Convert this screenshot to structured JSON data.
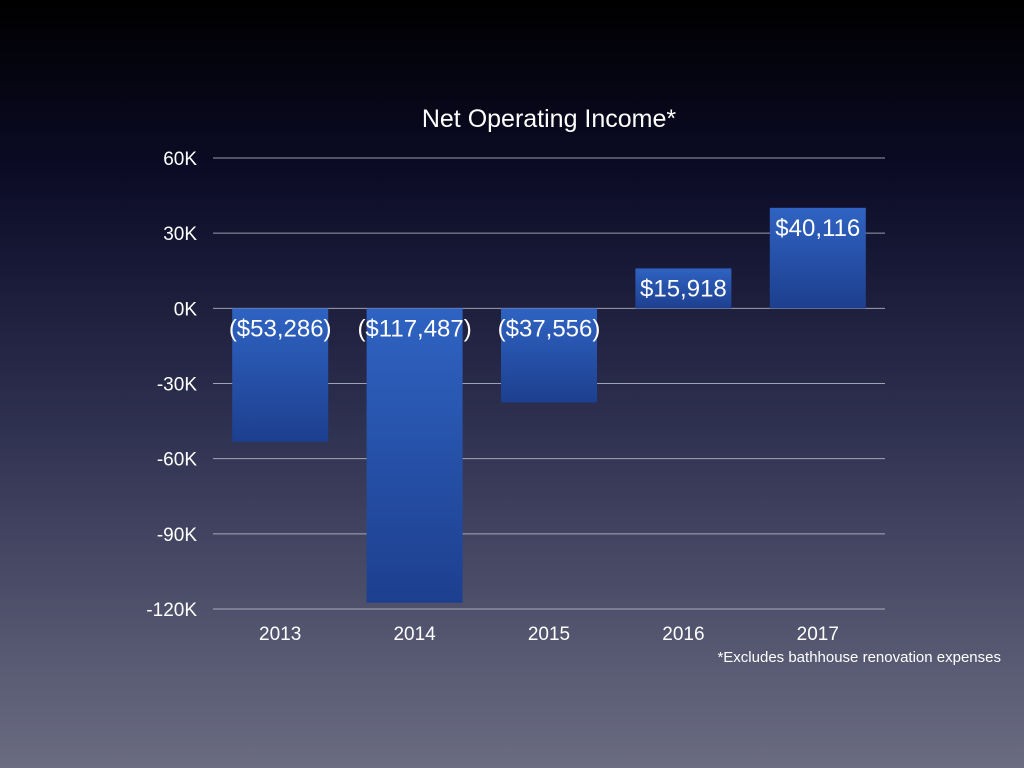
{
  "chart_data": {
    "type": "bar",
    "title": "Net Operating Income*",
    "categories": [
      "2013",
      "2014",
      "2015",
      "2016",
      "2017"
    ],
    "values": [
      -53286,
      -117487,
      -37556,
      15918,
      40116
    ],
    "data_labels": [
      "($53,286)",
      "($117,487)",
      "($37,556)",
      "$15,918",
      "$40,116"
    ],
    "ylim": [
      -120000,
      60000
    ],
    "yticks": [
      60000,
      30000,
      0,
      -30000,
      -60000,
      -90000,
      -120000
    ],
    "ytick_labels": [
      "60K",
      "30K",
      "0K",
      "-30K",
      "-60K",
      "-90K",
      "-120K"
    ],
    "grid": true,
    "footnote": "*Excludes bathhouse renovation expenses",
    "colors": {
      "bar_top": "#2f63c2",
      "bar_bottom": "#1d3f8f"
    }
  }
}
